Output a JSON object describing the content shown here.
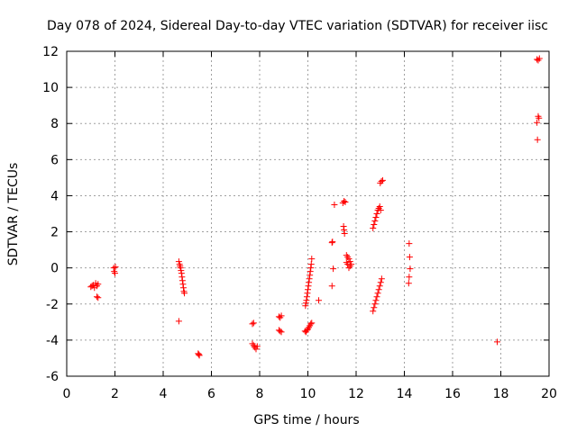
{
  "chart_data": {
    "type": "scatter",
    "title": "Day 078 of 2024, Sidereal Day-to-day VTEC variation (SDTVAR) for receiver iisc",
    "xlabel": "GPS time / hours",
    "ylabel": "SDTVAR / TECUs",
    "xlim": [
      0,
      20
    ],
    "ylim": [
      -6,
      12
    ],
    "xticks": [
      0,
      2,
      4,
      6,
      8,
      10,
      12,
      14,
      16,
      18,
      20
    ],
    "yticks": [
      -6,
      -4,
      -2,
      0,
      2,
      4,
      6,
      8,
      10,
      12
    ],
    "grid": true,
    "marker": "plus",
    "color": "#ff0000",
    "series": [
      {
        "name": "SDTVAR",
        "points": [
          [
            1.0,
            -1.05
          ],
          [
            1.05,
            -1.0
          ],
          [
            1.1,
            -0.95
          ],
          [
            1.15,
            -1.1
          ],
          [
            1.2,
            -0.85
          ],
          [
            1.25,
            -1.0
          ],
          [
            1.3,
            -0.9
          ],
          [
            1.25,
            -1.6
          ],
          [
            1.3,
            -1.65
          ],
          [
            1.95,
            0.0
          ],
          [
            1.97,
            -0.2
          ],
          [
            2.0,
            -0.3
          ],
          [
            2.02,
            0.05
          ],
          [
            4.65,
            0.35
          ],
          [
            4.68,
            0.2
          ],
          [
            4.7,
            0.1
          ],
          [
            4.72,
            0.0
          ],
          [
            4.74,
            -0.15
          ],
          [
            4.76,
            -0.3
          ],
          [
            4.78,
            -0.5
          ],
          [
            4.8,
            -0.7
          ],
          [
            4.82,
            -0.9
          ],
          [
            4.84,
            -1.1
          ],
          [
            4.86,
            -1.3
          ],
          [
            4.88,
            -1.4
          ],
          [
            4.65,
            -2.95
          ],
          [
            5.45,
            -4.75
          ],
          [
            5.48,
            -4.8
          ],
          [
            5.5,
            -4.85
          ],
          [
            7.7,
            -3.1
          ],
          [
            7.75,
            -3.05
          ],
          [
            7.7,
            -4.2
          ],
          [
            7.75,
            -4.3
          ],
          [
            7.8,
            -4.4
          ],
          [
            7.85,
            -4.5
          ],
          [
            7.9,
            -4.35
          ],
          [
            8.8,
            -2.7
          ],
          [
            8.85,
            -2.75
          ],
          [
            8.9,
            -2.65
          ],
          [
            8.8,
            -3.45
          ],
          [
            8.85,
            -3.5
          ],
          [
            8.9,
            -3.55
          ],
          [
            9.9,
            -2.1
          ],
          [
            9.92,
            -1.95
          ],
          [
            9.94,
            -1.8
          ],
          [
            9.96,
            -1.6
          ],
          [
            9.98,
            -1.4
          ],
          [
            10.0,
            -1.2
          ],
          [
            10.02,
            -1.0
          ],
          [
            10.04,
            -0.8
          ],
          [
            10.06,
            -0.6
          ],
          [
            10.08,
            -0.4
          ],
          [
            10.1,
            -0.2
          ],
          [
            10.12,
            0.0
          ],
          [
            10.14,
            0.2
          ],
          [
            10.16,
            0.5
          ],
          [
            9.88,
            -3.5
          ],
          [
            9.92,
            -3.55
          ],
          [
            9.96,
            -3.45
          ],
          [
            10.0,
            -3.4
          ],
          [
            10.04,
            -3.3
          ],
          [
            10.08,
            -3.2
          ],
          [
            10.12,
            -3.1
          ],
          [
            10.16,
            -3.05
          ],
          [
            10.45,
            -1.8
          ],
          [
            11.0,
            1.4
          ],
          [
            11.02,
            1.45
          ],
          [
            11.05,
            -0.05
          ],
          [
            11.0,
            -1.0
          ],
          [
            11.1,
            3.5
          ],
          [
            11.45,
            3.6
          ],
          [
            11.5,
            3.7
          ],
          [
            11.55,
            3.65
          ],
          [
            11.48,
            2.3
          ],
          [
            11.5,
            2.1
          ],
          [
            11.52,
            1.9
          ],
          [
            11.6,
            0.7
          ],
          [
            11.65,
            0.6
          ],
          [
            11.7,
            0.5
          ],
          [
            11.75,
            0.35
          ],
          [
            11.8,
            0.2
          ],
          [
            11.7,
            0.0
          ],
          [
            11.75,
            0.1
          ],
          [
            11.6,
            0.3
          ],
          [
            11.65,
            0.2
          ],
          [
            12.7,
            2.2
          ],
          [
            12.74,
            2.4
          ],
          [
            12.78,
            2.6
          ],
          [
            12.82,
            2.8
          ],
          [
            12.86,
            3.0
          ],
          [
            12.9,
            3.2
          ],
          [
            12.94,
            3.3
          ],
          [
            12.98,
            3.4
          ],
          [
            13.02,
            3.2
          ],
          [
            13.0,
            4.7
          ],
          [
            13.05,
            4.8
          ],
          [
            13.1,
            4.85
          ],
          [
            12.7,
            -2.4
          ],
          [
            12.74,
            -2.2
          ],
          [
            12.78,
            -2.0
          ],
          [
            12.82,
            -1.8
          ],
          [
            12.86,
            -1.6
          ],
          [
            12.9,
            -1.4
          ],
          [
            12.94,
            -1.2
          ],
          [
            12.98,
            -1.0
          ],
          [
            13.02,
            -0.8
          ],
          [
            13.06,
            -0.6
          ],
          [
            14.2,
            1.35
          ],
          [
            14.22,
            0.6
          ],
          [
            14.24,
            -0.05
          ],
          [
            14.2,
            -0.5
          ],
          [
            14.18,
            -0.85
          ],
          [
            17.85,
            -4.1
          ],
          [
            19.5,
            11.55
          ],
          [
            19.55,
            11.5
          ],
          [
            19.6,
            11.6
          ],
          [
            19.55,
            8.4
          ],
          [
            19.58,
            8.3
          ],
          [
            19.5,
            8.05
          ],
          [
            19.52,
            7.1
          ]
        ]
      }
    ]
  }
}
